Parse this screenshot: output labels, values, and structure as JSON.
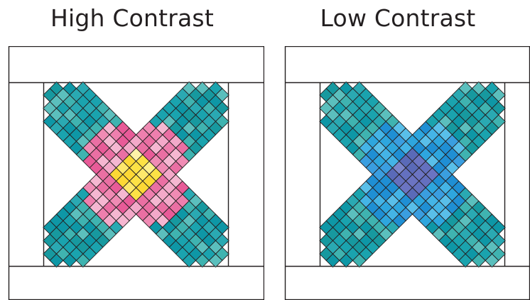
{
  "titles": {
    "left": "High Contrast",
    "right": "Low Contrast"
  },
  "palettes": {
    "teal": [
      "#1aa3ae",
      "#3fb3b0",
      "#0e97a6",
      "#5bbfbd",
      "#2aa9b2",
      "#17999f"
    ],
    "pink": [
      "#ee7fae",
      "#f3a9c9",
      "#e85b98",
      "#f5b7d1",
      "#f08bb4",
      "#ea6fa3"
    ],
    "yellow": [
      "#fde245",
      "#fef08a",
      "#fdd835",
      "#fff2a8",
      "#fde86b"
    ],
    "blue": [
      "#2ea6de",
      "#44b4e6",
      "#1f8fd4",
      "#59bfe9",
      "#3a9ee0"
    ],
    "violet": [
      "#6b74c2",
      "#5a6ab8",
      "#7c86cc",
      "#6470bf"
    ]
  },
  "panels": [
    {
      "key": "high",
      "ring_palette": "pink",
      "center_palette": "yellow"
    },
    {
      "key": "low",
      "ring_palette": "blue",
      "center_palette": "violet"
    }
  ]
}
